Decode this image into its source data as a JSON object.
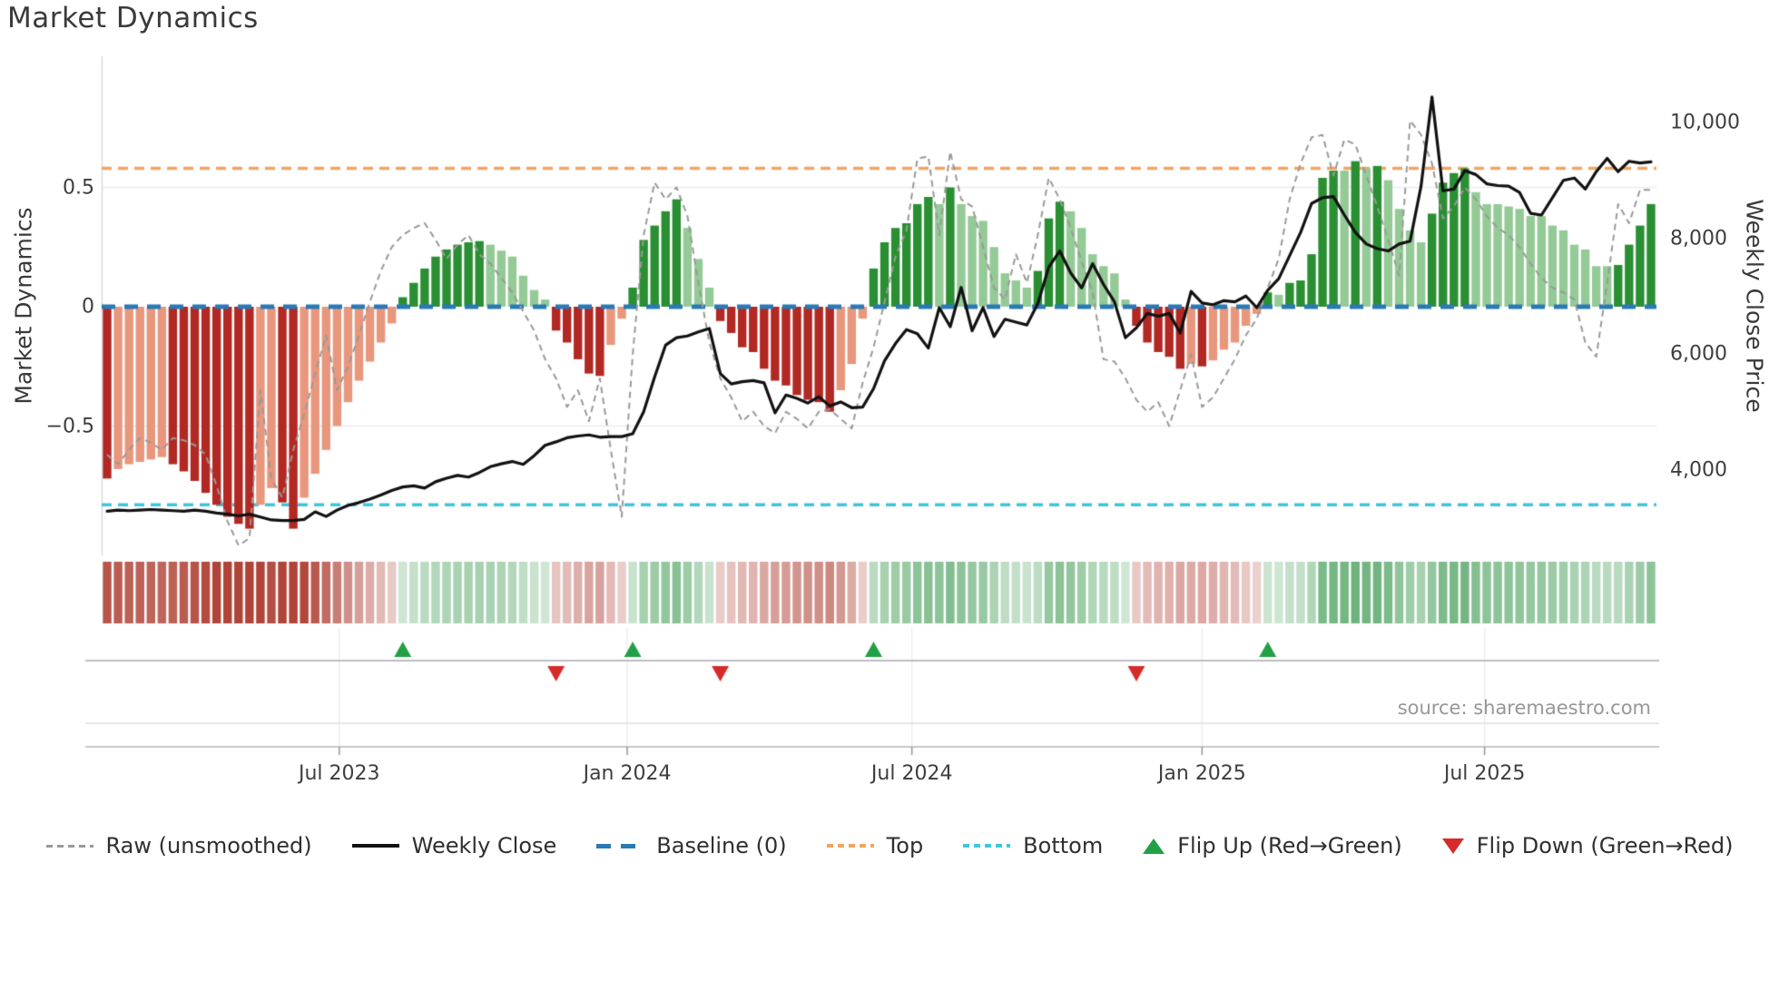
{
  "title": "Market Dynamics",
  "left_axis": {
    "title": "Market Dynamics",
    "ticks": [
      {
        "label": "0.5",
        "value": 0.5
      },
      {
        "label": "0",
        "value": 0
      },
      {
        "label": "−0.5",
        "value": -0.5
      }
    ]
  },
  "right_axis": {
    "title": "Weekly Close Price",
    "ticks": [
      {
        "label": "10,000",
        "value": 10000
      },
      {
        "label": "8,000",
        "value": 8000
      },
      {
        "label": "6,000",
        "value": 6000
      },
      {
        "label": "4,000",
        "value": 4000
      }
    ]
  },
  "x_axis": {
    "ticks": [
      {
        "label": "Jul 2023",
        "week": 21.2
      },
      {
        "label": "Jan 2024",
        "week": 47.5
      },
      {
        "label": "Jul 2024",
        "week": 73.5
      },
      {
        "label": "Jan 2025",
        "week": 100.0
      },
      {
        "label": "Jul 2025",
        "week": 125.8
      }
    ]
  },
  "source_note": "source: sharemaestro.com",
  "legend": {
    "items": [
      {
        "label": "Raw (unsmoothed)"
      },
      {
        "label": "Weekly Close"
      },
      {
        "label": "Baseline (0)"
      },
      {
        "label": "Top"
      },
      {
        "label": "Bottom"
      },
      {
        "label": "Flip Up (Red→Green)"
      },
      {
        "label": "Flip Down (Green→Red)"
      }
    ]
  },
  "colors": {
    "bar_dark_red": "#b22823",
    "bar_salmon": "#e8977d",
    "bar_dark_green": "#2a8f32",
    "bar_light_green": "#94ca96",
    "baseline": "#2979b5",
    "top_line": "#f1a55f",
    "bottom_line": "#3fc5dc",
    "raw_line": "#999999",
    "price_line": "#111111",
    "flip_up": "#22a045",
    "flip_down": "#d62b2b",
    "heat_negative": "#b04438",
    "heat_positive": "#57a768",
    "gridline": "#ececf2",
    "spine": "#d9d9e0",
    "band_line": "#bdbdc2",
    "band_line_light": "#dcdce0",
    "axis_line": "#c6c6cb",
    "text_dark": "#3a3a3a",
    "text_gray": "#979797"
  },
  "chart_data": {
    "type": "combo",
    "title": "Market Dynamics",
    "frequency": "weekly",
    "n_points": 142,
    "xlabel": "",
    "ylabel_left": "Market Dynamics",
    "ylabel_right": "Weekly Close Price",
    "left_ylim": [
      -1.04,
      1.05
    ],
    "right_ylim": [
      2520,
      11150
    ],
    "grid": "horizontal",
    "legend_position": "bottom",
    "reference_lines": {
      "baseline": 0,
      "top": 0.58,
      "bottom": -0.83
    },
    "flip_up_weeks": [
      27,
      48,
      70,
      106
    ],
    "flip_down_weeks": [
      41,
      56,
      94
    ],
    "heatmap": {
      "source": "bar values",
      "palette": "red-white-green"
    },
    "series": [
      {
        "name": "Market Dynamics (smoothed bars)",
        "type": "bar",
        "axis": "left",
        "values": [
          -0.72,
          -0.68,
          -0.66,
          -0.65,
          -0.64,
          -0.63,
          -0.66,
          -0.69,
          -0.73,
          -0.78,
          -0.83,
          -0.88,
          -0.91,
          -0.93,
          -0.83,
          -0.76,
          -0.82,
          -0.93,
          -0.8,
          -0.7,
          -0.6,
          -0.5,
          -0.4,
          -0.31,
          -0.23,
          -0.15,
          -0.07,
          0.04,
          0.1,
          0.16,
          0.21,
          0.24,
          0.26,
          0.27,
          0.275,
          0.26,
          0.235,
          0.21,
          0.13,
          0.07,
          0.03,
          -0.1,
          -0.15,
          -0.22,
          -0.28,
          -0.29,
          -0.16,
          -0.05,
          0.08,
          0.28,
          0.34,
          0.4,
          0.45,
          0.33,
          0.2,
          0.08,
          -0.06,
          -0.11,
          -0.17,
          -0.19,
          -0.26,
          -0.31,
          -0.33,
          -0.37,
          -0.39,
          -0.4,
          -0.44,
          -0.35,
          -0.24,
          -0.05,
          0.16,
          0.27,
          0.33,
          0.35,
          0.43,
          0.46,
          0.43,
          0.5,
          0.43,
          0.38,
          0.36,
          0.25,
          0.14,
          0.11,
          0.08,
          0.15,
          0.37,
          0.44,
          0.4,
          0.33,
          0.22,
          0.17,
          0.14,
          0.03,
          -0.08,
          -0.15,
          -0.19,
          -0.21,
          -0.26,
          -0.24,
          -0.25,
          -0.225,
          -0.18,
          -0.15,
          -0.08,
          -0.03,
          0.06,
          0.05,
          0.1,
          0.11,
          0.22,
          0.54,
          0.57,
          0.57,
          0.61,
          0.58,
          0.59,
          0.53,
          0.41,
          0.32,
          0.27,
          0.39,
          0.52,
          0.56,
          0.58,
          0.48,
          0.43,
          0.43,
          0.42,
          0.41,
          0.38,
          0.38,
          0.34,
          0.32,
          0.26,
          0.24,
          0.17,
          0.17,
          0.175,
          0.26,
          0.34,
          0.43
        ]
      },
      {
        "name": "Raw (unsmoothed)",
        "type": "line",
        "style": "dashed",
        "axis": "left",
        "values": [
          -0.62,
          -0.66,
          -0.6,
          -0.55,
          -0.57,
          -0.6,
          -0.55,
          -0.56,
          -0.58,
          -0.62,
          -0.75,
          -0.9,
          -1.0,
          -0.97,
          -0.35,
          -0.72,
          -0.8,
          -0.6,
          -0.45,
          -0.28,
          -0.12,
          -0.35,
          -0.25,
          -0.12,
          0.02,
          0.15,
          0.25,
          0.3,
          0.33,
          0.35,
          0.28,
          0.2,
          0.26,
          0.3,
          0.22,
          0.18,
          0.12,
          0.06,
          -0.02,
          -0.1,
          -0.22,
          -0.3,
          -0.42,
          -0.35,
          -0.48,
          -0.3,
          -0.6,
          -0.88,
          -0.2,
          0.3,
          0.52,
          0.45,
          0.5,
          0.38,
          0.1,
          -0.15,
          -0.3,
          -0.38,
          -0.48,
          -0.44,
          -0.5,
          -0.53,
          -0.44,
          -0.47,
          -0.51,
          -0.44,
          -0.43,
          -0.47,
          -0.51,
          -0.32,
          -0.17,
          0.02,
          0.21,
          0.32,
          0.62,
          0.63,
          0.3,
          0.65,
          0.45,
          0.42,
          0.25,
          0.08,
          0.03,
          0.22,
          0.1,
          0.3,
          0.54,
          0.45,
          0.33,
          0.19,
          0.06,
          -0.22,
          -0.23,
          -0.3,
          -0.39,
          -0.44,
          -0.4,
          -0.5,
          -0.35,
          -0.2,
          -0.42,
          -0.38,
          -0.3,
          -0.22,
          -0.12,
          -0.05,
          0.08,
          0.2,
          0.45,
          0.6,
          0.71,
          0.72,
          0.55,
          0.7,
          0.68,
          0.55,
          0.42,
          0.28,
          0.13,
          0.78,
          0.72,
          0.6,
          0.37,
          0.42,
          0.5,
          0.45,
          0.38,
          0.33,
          0.3,
          0.25,
          0.18,
          0.12,
          0.08,
          0.06,
          0.03,
          -0.15,
          -0.21,
          0.1,
          0.43,
          0.35,
          0.49,
          0.49
        ]
      },
      {
        "name": "Weekly Close",
        "type": "line",
        "style": "solid",
        "axis": "right",
        "values": [
          3280,
          3300,
          3290,
          3300,
          3310,
          3300,
          3290,
          3280,
          3300,
          3280,
          3250,
          3230,
          3200,
          3230,
          3180,
          3130,
          3120,
          3120,
          3140,
          3270,
          3190,
          3300,
          3380,
          3430,
          3490,
          3560,
          3640,
          3700,
          3720,
          3680,
          3790,
          3850,
          3900,
          3870,
          3950,
          4050,
          4100,
          4140,
          4090,
          4240,
          4420,
          4480,
          4550,
          4580,
          4600,
          4560,
          4570,
          4570,
          4620,
          5000,
          5600,
          6150,
          6280,
          6310,
          6380,
          6440,
          5660,
          5480,
          5520,
          5540,
          5500,
          4980,
          5290,
          5230,
          5150,
          5260,
          5100,
          5170,
          5070,
          5080,
          5400,
          5880,
          6180,
          6420,
          6350,
          6100,
          6800,
          6470,
          7150,
          6400,
          6800,
          6300,
          6600,
          6550,
          6500,
          6870,
          7500,
          7780,
          7400,
          7140,
          7560,
          7200,
          6900,
          6280,
          6450,
          6700,
          6650,
          6700,
          6360,
          7080,
          6880,
          6850,
          6920,
          6900,
          7000,
          6800,
          7100,
          7300,
          7700,
          8100,
          8600,
          8700,
          8720,
          8400,
          8100,
          7900,
          7820,
          7780,
          7900,
          7950,
          8900,
          10440,
          8820,
          8850,
          9170,
          9100,
          8940,
          8910,
          8900,
          8790,
          8430,
          8400,
          8700,
          9000,
          9040,
          8850,
          9150,
          9380,
          9150,
          9330,
          9300,
          9320
        ]
      }
    ]
  }
}
